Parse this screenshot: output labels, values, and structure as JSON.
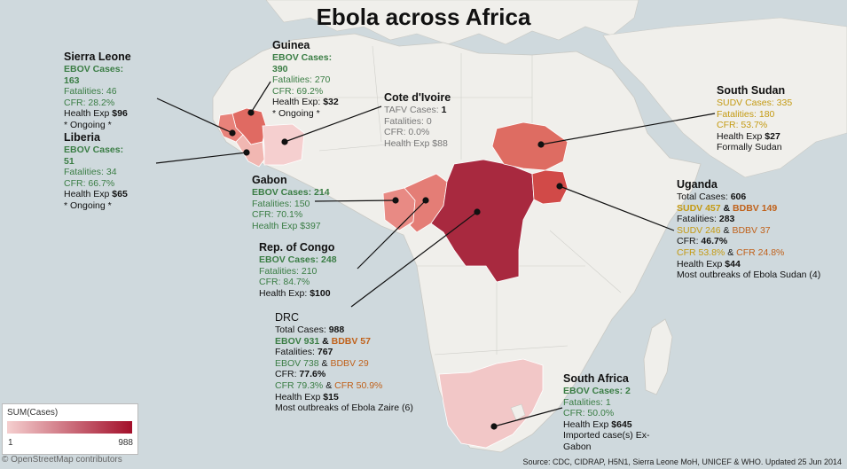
{
  "title": "Ebola across Africa",
  "legend": {
    "title": "SUM(Cases)",
    "min": "1",
    "max": "988",
    "min_color": "#f5cfcf",
    "max_color": "#a30f2a"
  },
  "attribution": "© OpenStreetMap contributors",
  "source": "Source: CDC, CIDRAP, H5N1, Sierra Leone MoH, UNICEF & WHO. Updated 25 Jun 2014",
  "countries": {
    "sierra_leone": {
      "name": "Sierra Leone",
      "cases": "EBOV Cases: 163",
      "fatalities": "Fatalities: 46",
      "cfr": "CFR: 28.2%",
      "health_prefix": "Health Exp ",
      "health_value": "$96",
      "ongoing": "* Ongoing *",
      "color": "#e8827a"
    },
    "guinea": {
      "name": "Guinea",
      "cases": "EBOV Cases: 390",
      "fatalities": "Fatalities: 270",
      "cfr": "CFR: 69.2%",
      "health_prefix": "Health Exp: ",
      "health_value": "$32",
      "ongoing": "* Ongoing *",
      "color": "#e06a62"
    },
    "liberia": {
      "name": "Liberia",
      "cases": "EBOV Cases: 51",
      "fatalities": "Fatalities: 34",
      "cfr": "CFR: 66.7%",
      "health_prefix": "Health Exp ",
      "health_value": "$65",
      "ongoing": "* Ongoing *",
      "color": "#f1b7b2"
    },
    "cote_divoire": {
      "name": "Cote d'Ivoire",
      "cases_label": "TAFV Cases: ",
      "cases_value": "1",
      "fatalities": "Fatalities: 0",
      "cfr": "CFR: 0.0%",
      "health_prefix": "Health Exp ",
      "health_value": "$88",
      "color": "#f5cfcf"
    },
    "gabon": {
      "name": "Gabon",
      "cases": "EBOV Cases: 214",
      "fatalities": "Fatalities: 150",
      "cfr": "CFR: 70.1%",
      "health": "Health Exp $397",
      "color": "#e88a84"
    },
    "rep_congo": {
      "name": "Rep. of Congo",
      "cases": "EBOV Cases: 248",
      "fatalities": "Fatalities: 210",
      "cfr": "CFR: 84.7%",
      "health_prefix": "Health Exp: ",
      "health_value": "$100",
      "color": "#e47d76"
    },
    "south_sudan": {
      "name": "South Sudan",
      "cases": "SUDV Cases: 335",
      "fatalities": "Fatalities: 180",
      "cfr": "CFR: 53.7%",
      "health_prefix": "Health Exp ",
      "health_value": "$27",
      "note": "Formally Sudan",
      "color": "#de6c62"
    },
    "uganda": {
      "name": "Uganda",
      "total_prefix": "Total Cases: ",
      "total_value": "606",
      "cases_a": "SUDV 457",
      "amp": " & ",
      "cases_b": "BDBV 149",
      "fatalities_prefix": "Fatalities: ",
      "fatalities_value": "283",
      "fat_a": "SUDV 246",
      "fat_b": "BDBV 37",
      "cfr_prefix": "CFR: ",
      "cfr_value": "46.7%",
      "cfr_a": "CFR 53.8%",
      "cfr_b": "CFR 24.8%",
      "health_prefix": "Health Exp ",
      "health_value": "$44",
      "note": "Most outbreaks of Ebola Sudan (4)",
      "color": "#d14a48"
    },
    "drc": {
      "name": "DRC",
      "total_prefix": "Total Cases: ",
      "total_value": "988",
      "cases_a": "EBOV 931",
      "amp": " & ",
      "cases_b": "BDBV 57",
      "fatalities_prefix": "Fatalities: ",
      "fatalities_value": "767",
      "fat_a": "EBOV 738",
      "fat_b": "BDBV 29",
      "cfr_prefix": "CFR: ",
      "cfr_value": "77.6%",
      "cfr_a": "CFR 79.3%",
      "cfr_b": "CFR 50.9%",
      "health_prefix": "Health Exp ",
      "health_value": "$15",
      "note": "Most outbreaks of Ebola Zaire (6)",
      "color": "#a8293f"
    },
    "south_africa": {
      "name": "South Africa",
      "cases": "EBOV Cases: 2",
      "fatalities": "Fatalities: 1",
      "cfr": "CFR: 50.0%",
      "health_prefix": "Health Exp ",
      "health_value": "$645",
      "note": "Imported case(s) Ex-Gabon",
      "color": "#f2c7c7"
    }
  }
}
